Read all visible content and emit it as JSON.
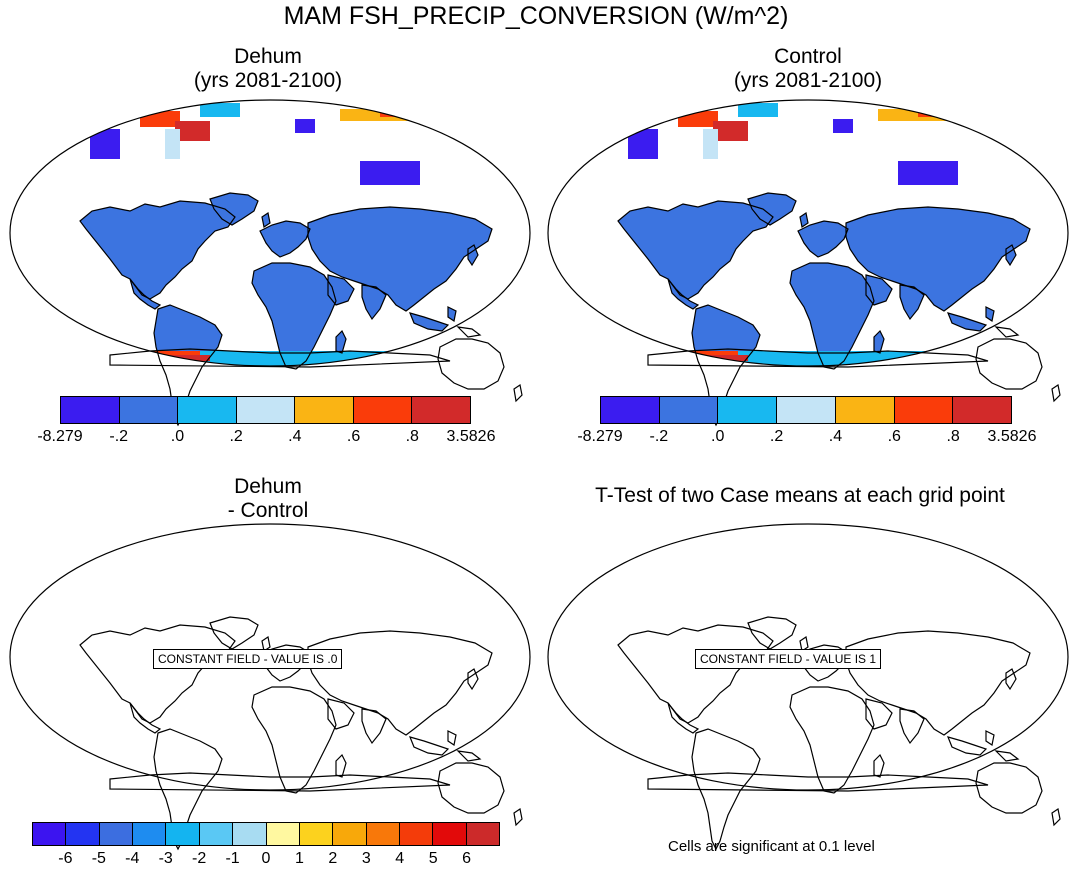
{
  "title": "MAM FSH_PRECIP_CONVERSION (W/m^2)",
  "panels": [
    {
      "title_line1": "Dehum",
      "title_line2": "(yrs 2081-2100)",
      "kind": "field"
    },
    {
      "title_line1": "Control",
      "title_line2": "(yrs 2081-2100)",
      "kind": "field"
    },
    {
      "title_line1": "Dehum",
      "title_line2": "- Control",
      "kind": "difference",
      "constant_label": "CONSTANT FIELD - VALUE IS .0"
    },
    {
      "title_line1": "T-Test of two Case means at each grid point",
      "kind": "ttest",
      "constant_label": "CONSTANT FIELD - VALUE IS 1"
    }
  ],
  "colorbar_top": {
    "colors": [
      "#3b1cf0",
      "#3c74e0",
      "#18b8f0",
      "#c4e4f6",
      "#fab414",
      "#fa3c0a",
      "#d22a2a"
    ],
    "tick_labels": [
      "-8.279",
      "-.2",
      ".0",
      ".2",
      ".4",
      ".6",
      ".8",
      "3.5826"
    ]
  },
  "colorbar_bottom": {
    "colors": [
      "#3c14f0",
      "#2334f2",
      "#3c6ee0",
      "#1e8cf0",
      "#14b4f0",
      "#5ac8f4",
      "#a8dcf2",
      "#fff8a0",
      "#fcd21e",
      "#f8a80a",
      "#f8780a",
      "#f43c0a",
      "#e20a0a",
      "#cc2a2a"
    ],
    "tick_labels": [
      "-6",
      "-5",
      "-4",
      "-3",
      "-2",
      "-1",
      "0",
      "1",
      "2",
      "3",
      "4",
      "5",
      "6"
    ]
  },
  "significance_note": "Cells are significant at 0.1 level",
  "chart_data": {
    "type": "map",
    "projection": "Robinson",
    "variable": "FSH_PRECIP_CONVERSION",
    "season": "MAM",
    "units": "W/m^2",
    "difference_constant_value": 0.0,
    "ttest_constant_value": 1
  }
}
